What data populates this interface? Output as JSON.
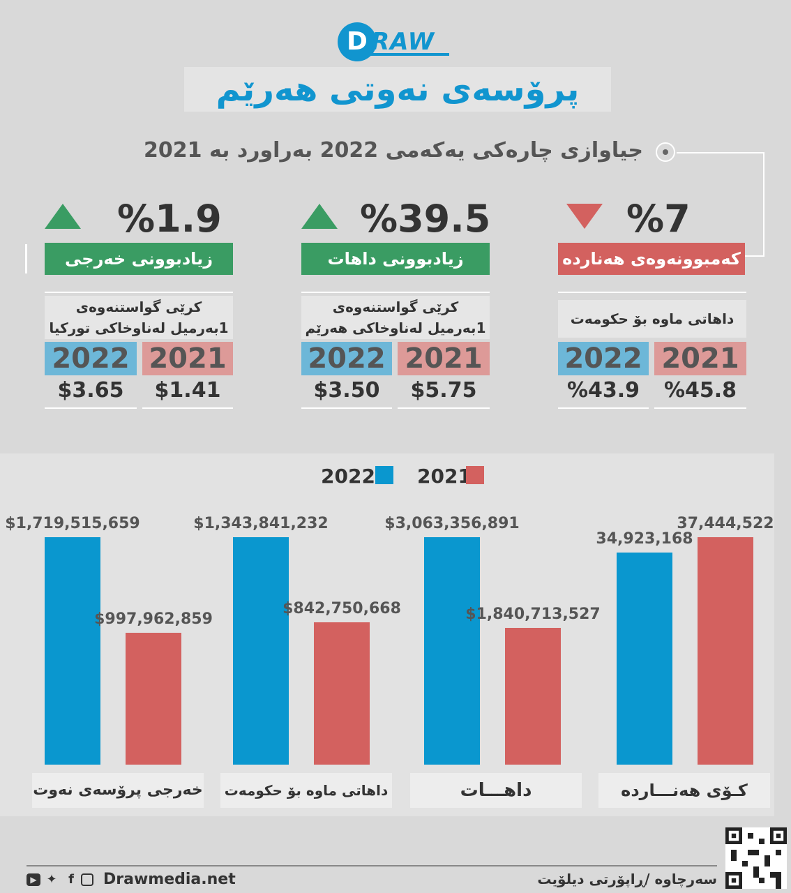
{
  "brand": {
    "logo_letter": "D",
    "logo_word": "RAW",
    "website": "Drawmedia.net"
  },
  "title": "پرۆسەی نەوتی هەرێم",
  "subtitle": "جیاوازی چارەکی یەکەمی 2022 بەراورد بە 2021",
  "cards": [
    {
      "pct": "%7",
      "direction": "down",
      "banner": "کەمبوونەوەی هەناردە",
      "note": "داهاتی ماوە بۆ حکومەت",
      "year_2022": "2022",
      "year_2021": "2021",
      "value_2022": "%43.9",
      "value_2021": "%45.8"
    },
    {
      "pct": "%39.5",
      "direction": "up",
      "banner": "زیادبوونی داهات",
      "note": "کرێی گواستنەوەی 1بەرمیل لەناوخاکی هەرێم",
      "year_2022": "2022",
      "year_2021": "2021",
      "value_2022": "$3.50",
      "value_2021": "$5.75"
    },
    {
      "pct": "%1.9",
      "direction": "up",
      "banner": "زیادبوونی خەرجی",
      "note": "کرێی گواستنەوەی 1بەرمیل لەناوخاکی تورکیا",
      "year_2022": "2022",
      "year_2021": "2021",
      "value_2022": "$3.65",
      "value_2021": "$1.41"
    }
  ],
  "chart_data": {
    "type": "bar",
    "categories": [
      "خەرجی پرۆسەی نەوت",
      "داهاتی ماوە بۆ حکومەت",
      "داهـــات",
      "کـۆی هەنـــاردە"
    ],
    "series": [
      {
        "name": "2022",
        "color": "#0a97cf",
        "values": [
          1719515659,
          1343841232,
          3063356891,
          34923168
        ],
        "labels": [
          "$1,719,515,659",
          "$1,343,841,232",
          "$3,063,356,891",
          "34,923,168"
        ]
      },
      {
        "name": "2021",
        "color": "#d3615f",
        "values": [
          997962859,
          842750668,
          1840713527,
          37444522
        ],
        "labels": [
          "$997,962,859",
          "$842,750,668",
          "$1,840,713,527",
          "37,444,522"
        ]
      }
    ],
    "legend": [
      "2022",
      "2021"
    ],
    "note": "each category group is scaled independently"
  },
  "footer": {
    "source": "سەرچاوە /ڕاپۆرتی دیلۆیت",
    "social": [
      "youtube-icon",
      "twitter-icon",
      "facebook-icon",
      "instagram-icon"
    ]
  }
}
